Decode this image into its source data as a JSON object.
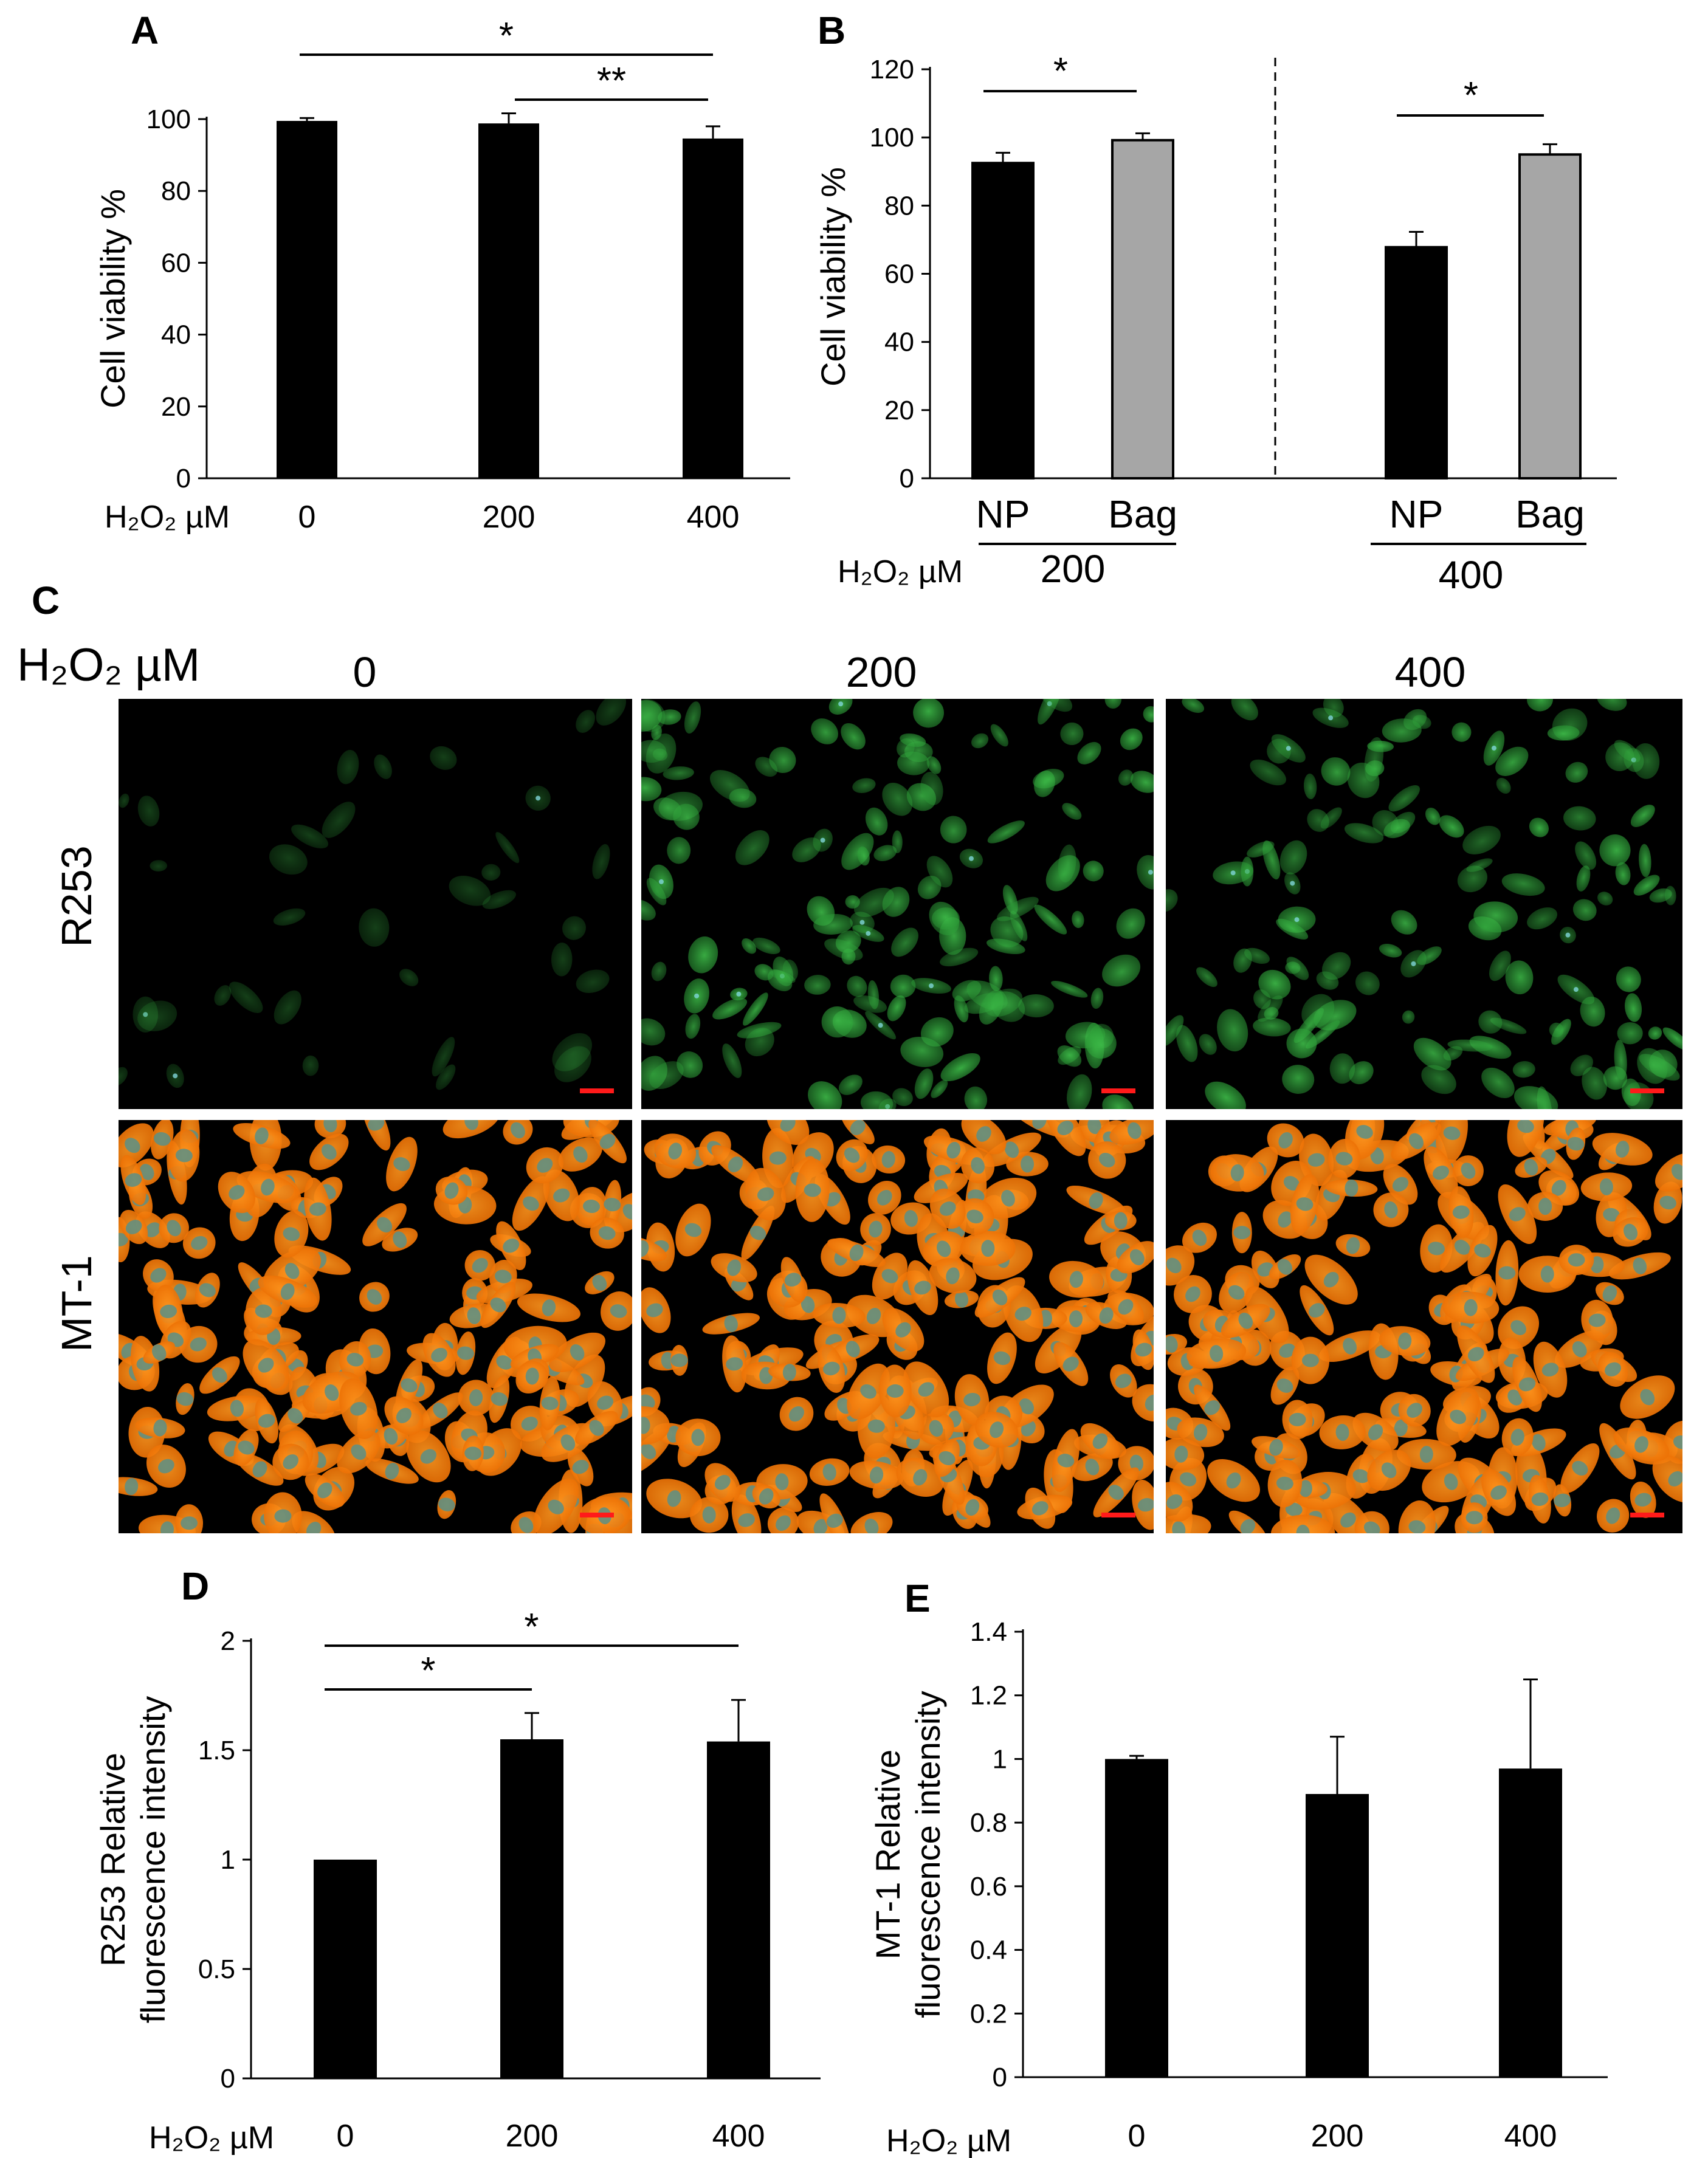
{
  "panels": {
    "A": {
      "letter": "A",
      "x_prefix": "H₂O₂ µM"
    },
    "B": {
      "letter": "B",
      "x_prefix": "H₂O₂ µM"
    },
    "C": {
      "letter": "C",
      "header_prefix": "H₂O₂ µM",
      "columns": [
        "0",
        "200",
        "400"
      ],
      "rows": [
        "R253",
        "MT-1"
      ],
      "colors": {
        "r253": "#1f8a2c",
        "mt1": "#ff7f0a",
        "nucleus": "#5a8f86",
        "scale_bar": "#ff1a1a"
      }
    },
    "D": {
      "letter": "D",
      "x_prefix": "H₂O₂ µM"
    },
    "E": {
      "letter": "E",
      "x_prefix": "H₂O₂ µM"
    }
  },
  "chart_data": [
    {
      "id": "A",
      "type": "bar",
      "categories": [
        "0",
        "200",
        "400"
      ],
      "values": [
        99.5,
        98.8,
        94.6
      ],
      "errors": [
        0.8,
        2.8,
        3.4
      ],
      "ylabel": "Cell viability %",
      "ylim": [
        0,
        100
      ],
      "yticks": [
        "0",
        "20",
        "40",
        "60",
        "80",
        "100"
      ],
      "bar_color": "#000000",
      "significance": [
        {
          "from": "0",
          "to": "400",
          "label": "*"
        },
        {
          "from": "200",
          "to": "400",
          "label": "**"
        }
      ]
    },
    {
      "id": "B",
      "type": "bar",
      "groups": [
        {
          "label": "200",
          "categories": [
            "NP",
            "Bag"
          ],
          "values": [
            92.5,
            99.2
          ],
          "errors": [
            3.0,
            2.0
          ],
          "significance": "*"
        },
        {
          "label": "400",
          "categories": [
            "NP",
            "Bag"
          ],
          "values": [
            67.8,
            95.0
          ],
          "errors": [
            4.5,
            3.0
          ],
          "significance": "*"
        }
      ],
      "ylabel": "Cell viability %",
      "ylim": [
        0,
        120
      ],
      "yticks": [
        "0",
        "20",
        "40",
        "60",
        "80",
        "100",
        "120"
      ],
      "colors": {
        "NP": "#000000",
        "Bag": "#a6a6a6"
      }
    },
    {
      "id": "D",
      "type": "bar",
      "categories": [
        "0",
        "200",
        "400"
      ],
      "values": [
        1.0,
        1.55,
        1.54
      ],
      "errors": [
        0.0,
        0.12,
        0.19
      ],
      "ylabel": "R253 Relative fluorescence intensity",
      "ylabel_lines": [
        "R253 Relative",
        "fluorescence intensity"
      ],
      "ylim": [
        0,
        2
      ],
      "yticks": [
        "0",
        "0.5",
        "1",
        "1.5",
        "2"
      ],
      "bar_color": "#000000",
      "significance": [
        {
          "from": "0",
          "to": "200",
          "label": "*"
        },
        {
          "from": "0",
          "to": "400",
          "label": "*"
        }
      ]
    },
    {
      "id": "E",
      "type": "bar",
      "categories": [
        "0",
        "200",
        "400"
      ],
      "values": [
        1.0,
        0.89,
        0.97
      ],
      "errors": [
        0.01,
        0.18,
        0.28
      ],
      "ylabel": "MT-1 Relative fluorescence intensity",
      "ylabel_lines": [
        "MT-1 Relative",
        "fluorescence intensity"
      ],
      "ylim": [
        0,
        1.4
      ],
      "yticks": [
        "0",
        "0.2",
        "0.4",
        "0.6",
        "0.8",
        "1",
        "1.2",
        "1.4"
      ],
      "bar_color": "#000000",
      "significance": []
    }
  ]
}
